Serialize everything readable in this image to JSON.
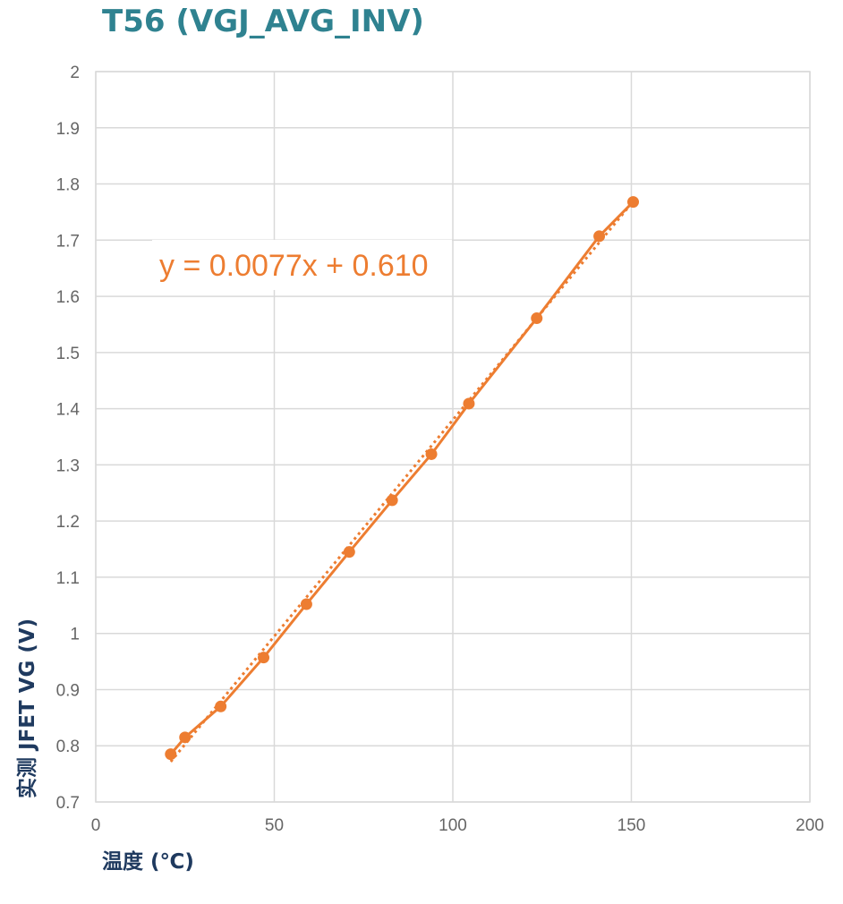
{
  "chart_data": {
    "type": "scatter",
    "title": "T56 (VGJ_AVG_INV)",
    "xlabel": "温度 (℃)",
    "ylabel": "实测 JFET VG (V)",
    "xlim": [
      0,
      200
    ],
    "ylim": [
      0.7,
      2.0
    ],
    "x_ticks": [
      "0",
      "50",
      "100",
      "150",
      "200"
    ],
    "y_ticks": [
      "0.7",
      "0.8",
      "0.9",
      "1",
      "1.1",
      "1.2",
      "1.3",
      "1.4",
      "1.5",
      "1.6",
      "1.7",
      "1.8",
      "1.9",
      "2"
    ],
    "grid": true,
    "series": [
      {
        "x": [
          21,
          25,
          35,
          47,
          59,
          71,
          83,
          94,
          104.5,
          123.5,
          141,
          150.5
        ],
        "y": [
          0.785,
          0.815,
          0.87,
          0.957,
          1.052,
          1.145,
          1.237,
          1.319,
          1.409,
          1.561,
          1.707,
          1.768
        ],
        "color": "#ed7d31",
        "style": "solid line with markers"
      }
    ],
    "trendline": {
      "type": "linear",
      "slope": 0.0077,
      "intercept": 0.61,
      "x_range": [
        21,
        150.5
      ],
      "style": "dotted",
      "color": "#ed7d31",
      "equation_label": "y = 0.0077x + 0.610"
    }
  }
}
